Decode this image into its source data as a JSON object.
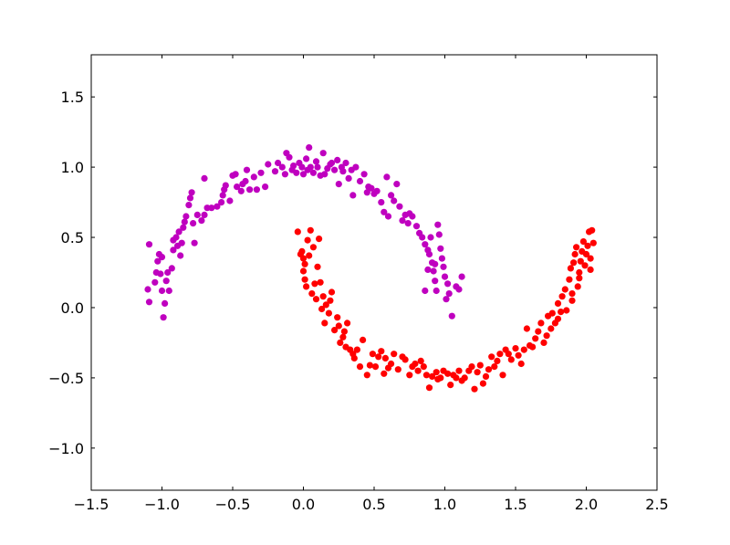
{
  "chart_data": {
    "type": "scatter",
    "title": "",
    "xlabel": "",
    "ylabel": "",
    "xlim": [
      -1.5,
      2.5
    ],
    "ylim": [
      -1.3,
      1.8
    ],
    "grid": false,
    "x_ticks": [
      -1.5,
      -1.0,
      -0.5,
      0.0,
      0.5,
      1.0,
      1.5,
      2.0,
      2.5
    ],
    "x_tick_labels": [
      "−1.5",
      "−1.0",
      "−0.5",
      "0.0",
      "0.5",
      "1.0",
      "1.5",
      "2.0",
      "2.5"
    ],
    "y_ticks": [
      -1.0,
      -0.5,
      0.0,
      0.5,
      1.0,
      1.5
    ],
    "y_tick_labels": [
      "−1.0",
      "−0.5",
      "0.0",
      "0.5",
      "1.0",
      "1.5"
    ],
    "series": [
      {
        "color": "#bf00bf",
        "points": [
          [
            -1.09,
            0.45
          ],
          [
            -1.1,
            0.13
          ],
          [
            -1.09,
            0.04
          ],
          [
            -1.05,
            0.18
          ],
          [
            -1.04,
            0.25
          ],
          [
            -1.03,
            0.33
          ],
          [
            -1.02,
            0.38
          ],
          [
            -1.0,
            0.36
          ],
          [
            -1.01,
            0.24
          ],
          [
            -1.0,
            0.12
          ],
          [
            -0.99,
            -0.07
          ],
          [
            -0.98,
            0.03
          ],
          [
            -0.97,
            0.19
          ],
          [
            -0.96,
            0.25
          ],
          [
            -0.95,
            0.12
          ],
          [
            -0.93,
            0.28
          ],
          [
            -0.92,
            0.41
          ],
          [
            -0.92,
            0.48
          ],
          [
            -0.9,
            0.5
          ],
          [
            -0.89,
            0.44
          ],
          [
            -0.88,
            0.54
          ],
          [
            -0.87,
            0.37
          ],
          [
            -0.86,
            0.46
          ],
          [
            -0.85,
            0.57
          ],
          [
            -0.84,
            0.61
          ],
          [
            -0.83,
            0.65
          ],
          [
            -0.81,
            0.73
          ],
          [
            -0.8,
            0.78
          ],
          [
            -0.79,
            0.82
          ],
          [
            -0.78,
            0.6
          ],
          [
            -0.77,
            0.46
          ],
          [
            -0.75,
            0.66
          ],
          [
            -0.72,
            0.62
          ],
          [
            -0.7,
            0.66
          ],
          [
            -0.68,
            0.71
          ],
          [
            -0.7,
            0.92
          ],
          [
            -0.65,
            0.71
          ],
          [
            -0.61,
            0.72
          ],
          [
            -0.58,
            0.75
          ],
          [
            -0.57,
            0.8
          ],
          [
            -0.56,
            0.84
          ],
          [
            -0.55,
            0.87
          ],
          [
            -0.52,
            0.76
          ],
          [
            -0.5,
            0.94
          ],
          [
            -0.48,
            0.95
          ],
          [
            -0.47,
            0.86
          ],
          [
            -0.44,
            0.83
          ],
          [
            -0.43,
            0.88
          ],
          [
            -0.41,
            0.9
          ],
          [
            -0.4,
            0.98
          ],
          [
            -0.38,
            0.84
          ],
          [
            -0.35,
            0.93
          ],
          [
            -0.33,
            0.84
          ],
          [
            -0.3,
            0.96
          ],
          [
            -0.27,
            0.86
          ],
          [
            -0.25,
            1.02
          ],
          [
            -0.2,
            0.97
          ],
          [
            -0.18,
            1.03
          ],
          [
            -0.15,
            1.0
          ],
          [
            -0.13,
            0.95
          ],
          [
            -0.12,
            1.1
          ],
          [
            -0.1,
            1.07
          ],
          [
            -0.08,
            0.98
          ],
          [
            -0.07,
            1.01
          ],
          [
            -0.05,
            0.96
          ],
          [
            -0.03,
            1.03
          ],
          [
            -0.01,
            1.0
          ],
          [
            0.0,
            0.95
          ],
          [
            0.02,
            1.06
          ],
          [
            0.03,
            0.98
          ],
          [
            0.04,
            1.14
          ],
          [
            0.05,
            1.0
          ],
          [
            0.07,
            0.96
          ],
          [
            0.09,
            1.04
          ],
          [
            0.1,
            1.0
          ],
          [
            0.12,
            0.94
          ],
          [
            0.14,
            1.1
          ],
          [
            0.15,
            0.95
          ],
          [
            0.17,
            0.99
          ],
          [
            0.19,
            1.02
          ],
          [
            0.2,
            1.03
          ],
          [
            0.22,
            0.98
          ],
          [
            0.24,
            1.05
          ],
          [
            0.25,
            0.88
          ],
          [
            0.27,
            1.0
          ],
          [
            0.28,
            0.97
          ],
          [
            0.3,
            1.03
          ],
          [
            0.32,
            0.92
          ],
          [
            0.34,
            0.98
          ],
          [
            0.35,
            0.8
          ],
          [
            0.37,
            1.0
          ],
          [
            0.4,
            0.9
          ],
          [
            0.43,
            0.95
          ],
          [
            0.45,
            0.82
          ],
          [
            0.46,
            0.86
          ],
          [
            0.48,
            0.85
          ],
          [
            0.5,
            0.81
          ],
          [
            0.52,
            0.83
          ],
          [
            0.55,
            0.75
          ],
          [
            0.57,
            0.68
          ],
          [
            0.59,
            0.93
          ],
          [
            0.6,
            0.65
          ],
          [
            0.62,
            0.8
          ],
          [
            0.64,
            0.76
          ],
          [
            0.66,
            0.88
          ],
          [
            0.68,
            0.72
          ],
          [
            0.7,
            0.62
          ],
          [
            0.72,
            0.66
          ],
          [
            0.74,
            0.6
          ],
          [
            0.75,
            0.67
          ],
          [
            0.77,
            0.65
          ],
          [
            0.8,
            0.58
          ],
          [
            0.82,
            0.53
          ],
          [
            0.84,
            0.5
          ],
          [
            0.86,
            0.45
          ],
          [
            0.88,
            0.41
          ],
          [
            0.89,
            0.38
          ],
          [
            0.9,
            0.5
          ],
          [
            0.91,
            0.32
          ],
          [
            0.92,
            0.26
          ],
          [
            0.93,
            0.19
          ],
          [
            0.94,
            0.12
          ],
          [
            0.95,
            0.59
          ],
          [
            0.96,
            0.52
          ],
          [
            0.97,
            0.42
          ],
          [
            0.98,
            0.35
          ],
          [
            0.99,
            0.29
          ],
          [
            1.0,
            0.22
          ],
          [
            1.01,
            0.06
          ],
          [
            1.02,
            0.17
          ],
          [
            1.03,
            0.1
          ],
          [
            1.05,
            -0.06
          ],
          [
            1.08,
            0.15
          ],
          [
            1.1,
            0.13
          ],
          [
            1.12,
            0.22
          ],
          [
            0.93,
            0.31
          ],
          [
            0.88,
            0.27
          ],
          [
            0.86,
            0.12
          ]
        ]
      },
      {
        "color": "#ff0000",
        "points": [
          [
            -0.04,
            0.54
          ],
          [
            -0.02,
            0.38
          ],
          [
            -0.01,
            0.4
          ],
          [
            0.0,
            0.35
          ],
          [
            0.01,
            0.31
          ],
          [
            0.0,
            0.26
          ],
          [
            0.01,
            0.2
          ],
          [
            0.02,
            0.15
          ],
          [
            0.03,
            0.48
          ],
          [
            0.04,
            0.37
          ],
          [
            0.05,
            0.55
          ],
          [
            0.06,
            0.1
          ],
          [
            0.07,
            0.43
          ],
          [
            0.08,
            0.17
          ],
          [
            0.09,
            0.06
          ],
          [
            0.1,
            0.29
          ],
          [
            0.11,
            0.49
          ],
          [
            0.12,
            0.18
          ],
          [
            0.13,
            -0.01
          ],
          [
            0.14,
            0.08
          ],
          [
            0.15,
            -0.11
          ],
          [
            0.16,
            0.02
          ],
          [
            0.18,
            -0.04
          ],
          [
            0.19,
            0.05
          ],
          [
            0.2,
            0.11
          ],
          [
            0.22,
            -0.16
          ],
          [
            0.24,
            -0.07
          ],
          [
            0.25,
            -0.13
          ],
          [
            0.26,
            -0.25
          ],
          [
            0.28,
            -0.21
          ],
          [
            0.29,
            -0.17
          ],
          [
            0.3,
            -0.28
          ],
          [
            0.31,
            -0.11
          ],
          [
            0.33,
            -0.3
          ],
          [
            0.35,
            -0.33
          ],
          [
            0.36,
            -0.36
          ],
          [
            0.38,
            -0.3
          ],
          [
            0.4,
            -0.42
          ],
          [
            0.42,
            -0.23
          ],
          [
            0.45,
            -0.48
          ],
          [
            0.47,
            -0.41
          ],
          [
            0.49,
            -0.33
          ],
          [
            0.51,
            -0.42
          ],
          [
            0.53,
            -0.35
          ],
          [
            0.55,
            -0.31
          ],
          [
            0.57,
            -0.47
          ],
          [
            0.58,
            -0.36
          ],
          [
            0.6,
            -0.43
          ],
          [
            0.62,
            -0.4
          ],
          [
            0.64,
            -0.33
          ],
          [
            0.67,
            -0.44
          ],
          [
            0.7,
            -0.35
          ],
          [
            0.72,
            -0.37
          ],
          [
            0.75,
            -0.48
          ],
          [
            0.77,
            -0.42
          ],
          [
            0.79,
            -0.4
          ],
          [
            0.81,
            -0.45
          ],
          [
            0.83,
            -0.38
          ],
          [
            0.85,
            -0.42
          ],
          [
            0.87,
            -0.48
          ],
          [
            0.89,
            -0.57
          ],
          [
            0.91,
            -0.49
          ],
          [
            0.94,
            -0.46
          ],
          [
            0.95,
            -0.51
          ],
          [
            0.97,
            -0.5
          ],
          [
            0.99,
            -0.45
          ],
          [
            1.02,
            -0.47
          ],
          [
            1.04,
            -0.55
          ],
          [
            1.06,
            -0.48
          ],
          [
            1.08,
            -0.5
          ],
          [
            1.1,
            -0.45
          ],
          [
            1.12,
            -0.52
          ],
          [
            1.14,
            -0.5
          ],
          [
            1.17,
            -0.45
          ],
          [
            1.19,
            -0.42
          ],
          [
            1.21,
            -0.58
          ],
          [
            1.23,
            -0.46
          ],
          [
            1.25,
            -0.41
          ],
          [
            1.27,
            -0.54
          ],
          [
            1.29,
            -0.49
          ],
          [
            1.31,
            -0.44
          ],
          [
            1.33,
            -0.35
          ],
          [
            1.35,
            -0.42
          ],
          [
            1.37,
            -0.38
          ],
          [
            1.39,
            -0.33
          ],
          [
            1.41,
            -0.48
          ],
          [
            1.43,
            -0.3
          ],
          [
            1.45,
            -0.33
          ],
          [
            1.47,
            -0.37
          ],
          [
            1.5,
            -0.29
          ],
          [
            1.52,
            -0.34
          ],
          [
            1.54,
            -0.4
          ],
          [
            1.56,
            -0.3
          ],
          [
            1.58,
            -0.15
          ],
          [
            1.6,
            -0.27
          ],
          [
            1.62,
            -0.28
          ],
          [
            1.64,
            -0.22
          ],
          [
            1.66,
            -0.17
          ],
          [
            1.68,
            -0.11
          ],
          [
            1.7,
            -0.25
          ],
          [
            1.72,
            -0.2
          ],
          [
            1.73,
            -0.06
          ],
          [
            1.75,
            -0.15
          ],
          [
            1.76,
            -0.04
          ],
          [
            1.78,
            -0.11
          ],
          [
            1.8,
            0.03
          ],
          [
            1.82,
            -0.03
          ],
          [
            1.83,
            0.08
          ],
          [
            1.85,
            0.13
          ],
          [
            1.86,
            -0.02
          ],
          [
            1.88,
            0.2
          ],
          [
            1.89,
            0.28
          ],
          [
            1.9,
            0.05
          ],
          [
            1.91,
            0.32
          ],
          [
            1.92,
            0.38
          ],
          [
            1.93,
            0.43
          ],
          [
            1.94,
            0.15
          ],
          [
            1.95,
            0.25
          ],
          [
            1.96,
            0.33
          ],
          [
            1.97,
            0.4
          ],
          [
            1.98,
            0.47
          ],
          [
            1.99,
            0.3
          ],
          [
            2.0,
            0.38
          ],
          [
            2.01,
            0.44
          ],
          [
            2.02,
            0.54
          ],
          [
            2.03,
            0.27
          ],
          [
            2.04,
            0.55
          ],
          [
            2.05,
            0.46
          ],
          [
            1.9,
            0.1
          ],
          [
            1.8,
            -0.08
          ],
          [
            1.95,
            0.21
          ],
          [
            2.03,
            0.35
          ]
        ]
      }
    ]
  }
}
